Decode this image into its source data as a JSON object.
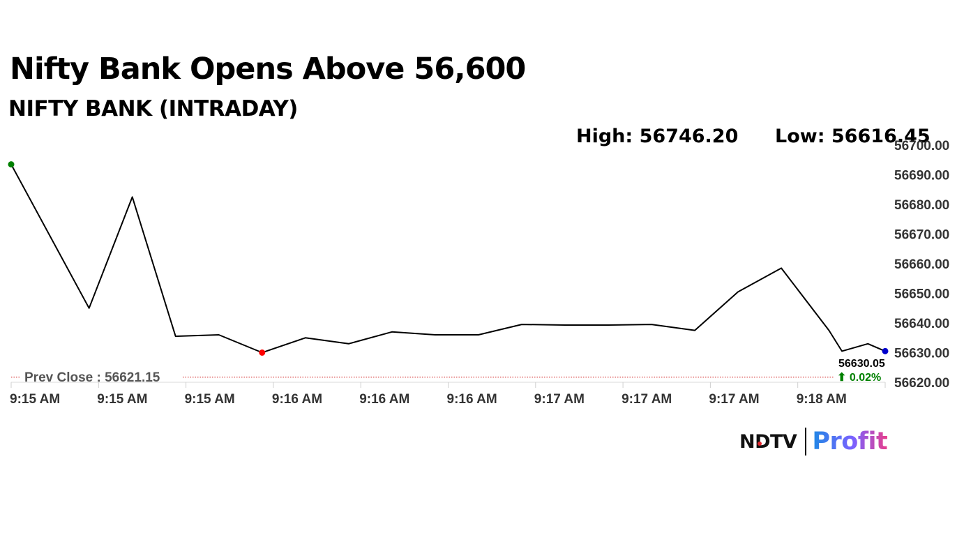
{
  "header": {
    "headline": "Nifty Bank Opens Above 56,600",
    "subtitle": "NIFTY BANK (INTRADAY)",
    "high": "High: 56746.20",
    "low": "Low: 56616.45"
  },
  "brand": {
    "name_left": "NDTV",
    "name_right": "Profit",
    "accent_red": "#e5262d",
    "gradient_colors": [
      "#1e88e5",
      "#7b61ff",
      "#e83e8c"
    ]
  },
  "chart_data": {
    "type": "line",
    "title": "NIFTY BANK (INTRADAY)",
    "xlabel": "",
    "ylabel": "",
    "ylim": [
      56620,
      56700
    ],
    "y_ticks": [
      56700,
      56690,
      56680,
      56670,
      56660,
      56650,
      56640,
      56630,
      56620
    ],
    "y_tick_labels": [
      "56700.00",
      "56690.00",
      "56680.00",
      "56670.00",
      "56660.00",
      "56650.00",
      "56640.00",
      "56630.00",
      "56620.00"
    ],
    "x_tick_labels": [
      "9:15 AM",
      "9:15 AM",
      "9:15 AM",
      "9:16 AM",
      "9:16 AM",
      "9:16 AM",
      "9:17 AM",
      "9:17 AM",
      "9:17 AM",
      "9:18 AM"
    ],
    "x_range": [
      0,
      20.2
    ],
    "grid": false,
    "series": [
      {
        "color": "#000000",
        "x": [
          0,
          1.8,
          2.8,
          3.8,
          4.8,
          5.8,
          6.8,
          7.8,
          8.8,
          9.8,
          10.8,
          11.8,
          12.8,
          13.8,
          14.8,
          15.8,
          16.8,
          17.8,
          18.9,
          19.2,
          19.8,
          20.2
        ],
        "values": [
          56693.5,
          56645,
          56682.5,
          56635.5,
          56636,
          56630,
          56635,
          56633,
          56637,
          56636,
          56636,
          56639.5,
          56639.3,
          56639.3,
          56639.5,
          56637.5,
          56650.5,
          56658.5,
          56637.5,
          56630.5,
          56633,
          56630.5
        ]
      }
    ],
    "markers": [
      {
        "name": "open",
        "index": 0,
        "color": "#008000"
      },
      {
        "name": "day-low",
        "index": 5,
        "color": "#ff0000"
      },
      {
        "name": "last",
        "index": 21,
        "color": "#0000cc"
      }
    ],
    "prev_close": {
      "value": 56621.15,
      "label": "Prev Close : 56621.15",
      "color": "#cc0000"
    },
    "last_value_label": "56630.05",
    "change_label": "⬆ 0.02%",
    "change_color": "#008000"
  }
}
